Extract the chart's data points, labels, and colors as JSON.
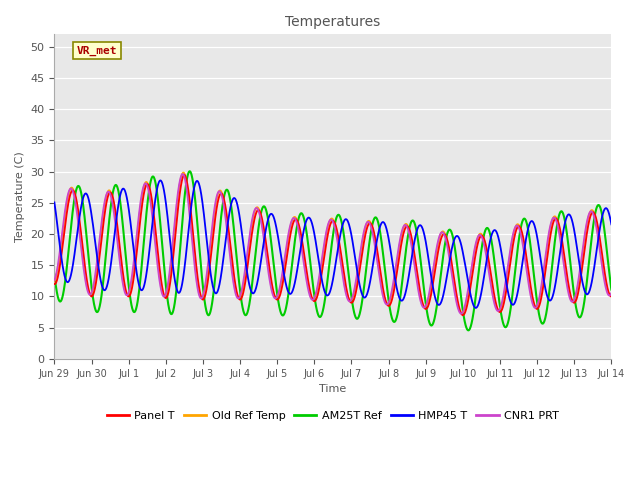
{
  "title": "Temperatures",
  "xlabel": "Time",
  "ylabel": "Temperature (C)",
  "ylim": [
    0,
    52
  ],
  "yticks": [
    0,
    5,
    10,
    15,
    20,
    25,
    30,
    35,
    40,
    45,
    50
  ],
  "plot_bg_color": "#e8e8e8",
  "fig_bg_color": "#ffffff",
  "annotation_text": "VR_met",
  "series": [
    {
      "label": "Panel T",
      "color": "#ff0000",
      "lw": 1.3,
      "zorder": 4
    },
    {
      "label": "Old Ref Temp",
      "color": "#ffa500",
      "lw": 1.3,
      "zorder": 3
    },
    {
      "label": "AM25T Ref",
      "color": "#00cc00",
      "lw": 1.5,
      "zorder": 2
    },
    {
      "label": "HMP45 T",
      "color": "#0000ff",
      "lw": 1.3,
      "zorder": 5
    },
    {
      "label": "CNR1 PRT",
      "color": "#cc44cc",
      "lw": 1.3,
      "zorder": 4
    }
  ],
  "x_tick_labels": [
    "Jun 29",
    "Jun 30",
    "Jul 1",
    "Jul 2",
    "Jul 3",
    "Jul 4",
    "Jul 5",
    "Jul 6",
    "Jul 7",
    "Jul 8",
    "Jul 9",
    "Jul 10",
    "Jul 11",
    "Jul 12",
    "Jul 13",
    "Jul 14"
  ],
  "x_tick_positions": [
    0,
    1,
    2,
    3,
    4,
    5,
    6,
    7,
    8,
    9,
    10,
    11,
    12,
    13,
    14,
    15
  ],
  "n_points": 3000,
  "t_start": 0,
  "t_end": 15,
  "amp_envelope_x": [
    0,
    1.0,
    2.5,
    3.5,
    4.5,
    6,
    8,
    10,
    11,
    12,
    13,
    14,
    15
  ],
  "amp_envelope_base": [
    16,
    16,
    18,
    20,
    17,
    13,
    13,
    13,
    12,
    13,
    14,
    14,
    14
  ],
  "min_envelope_x": [
    0,
    1.0,
    2.5,
    3.5,
    4.5,
    6,
    8,
    10,
    11,
    12,
    13,
    14,
    15
  ],
  "min_envelope_base": [
    12,
    10,
    10,
    9.5,
    9.5,
    9.5,
    9,
    8,
    7,
    7.5,
    8,
    9,
    10
  ],
  "amp_green_extra": 3.5,
  "min_green_extra": -2.5,
  "phase_blue": -0.35,
  "phase_purple": 0.05,
  "phase_orange": 0.03,
  "phase_green": -0.15
}
